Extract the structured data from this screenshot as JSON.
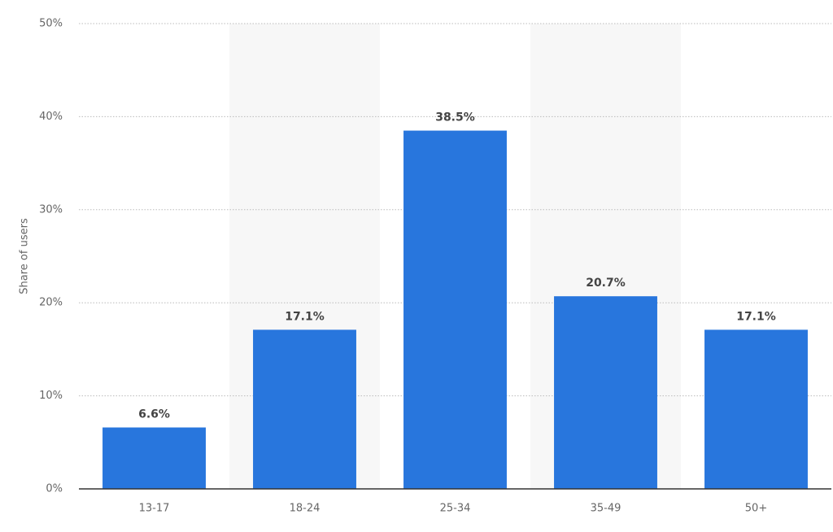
{
  "chart_data": {
    "type": "bar",
    "y_label": "Share of users",
    "categories": [
      "13-17",
      "18-24",
      "25-34",
      "35-49",
      "50+"
    ],
    "values": [
      6.6,
      17.1,
      38.5,
      20.7,
      17.1
    ],
    "value_labels": [
      "6.6%",
      "17.1%",
      "38.5%",
      "20.7%",
      "17.1%"
    ],
    "color": "#2876dd",
    "ylim": [
      0,
      50
    ],
    "yticks": [
      {
        "value": 0,
        "label": "0%"
      },
      {
        "value": 10,
        "label": "10%"
      },
      {
        "value": 20,
        "label": "20%"
      },
      {
        "value": 30,
        "label": "30%"
      },
      {
        "value": 40,
        "label": "40%"
      },
      {
        "value": 50,
        "label": "50%"
      }
    ],
    "grid": true
  }
}
